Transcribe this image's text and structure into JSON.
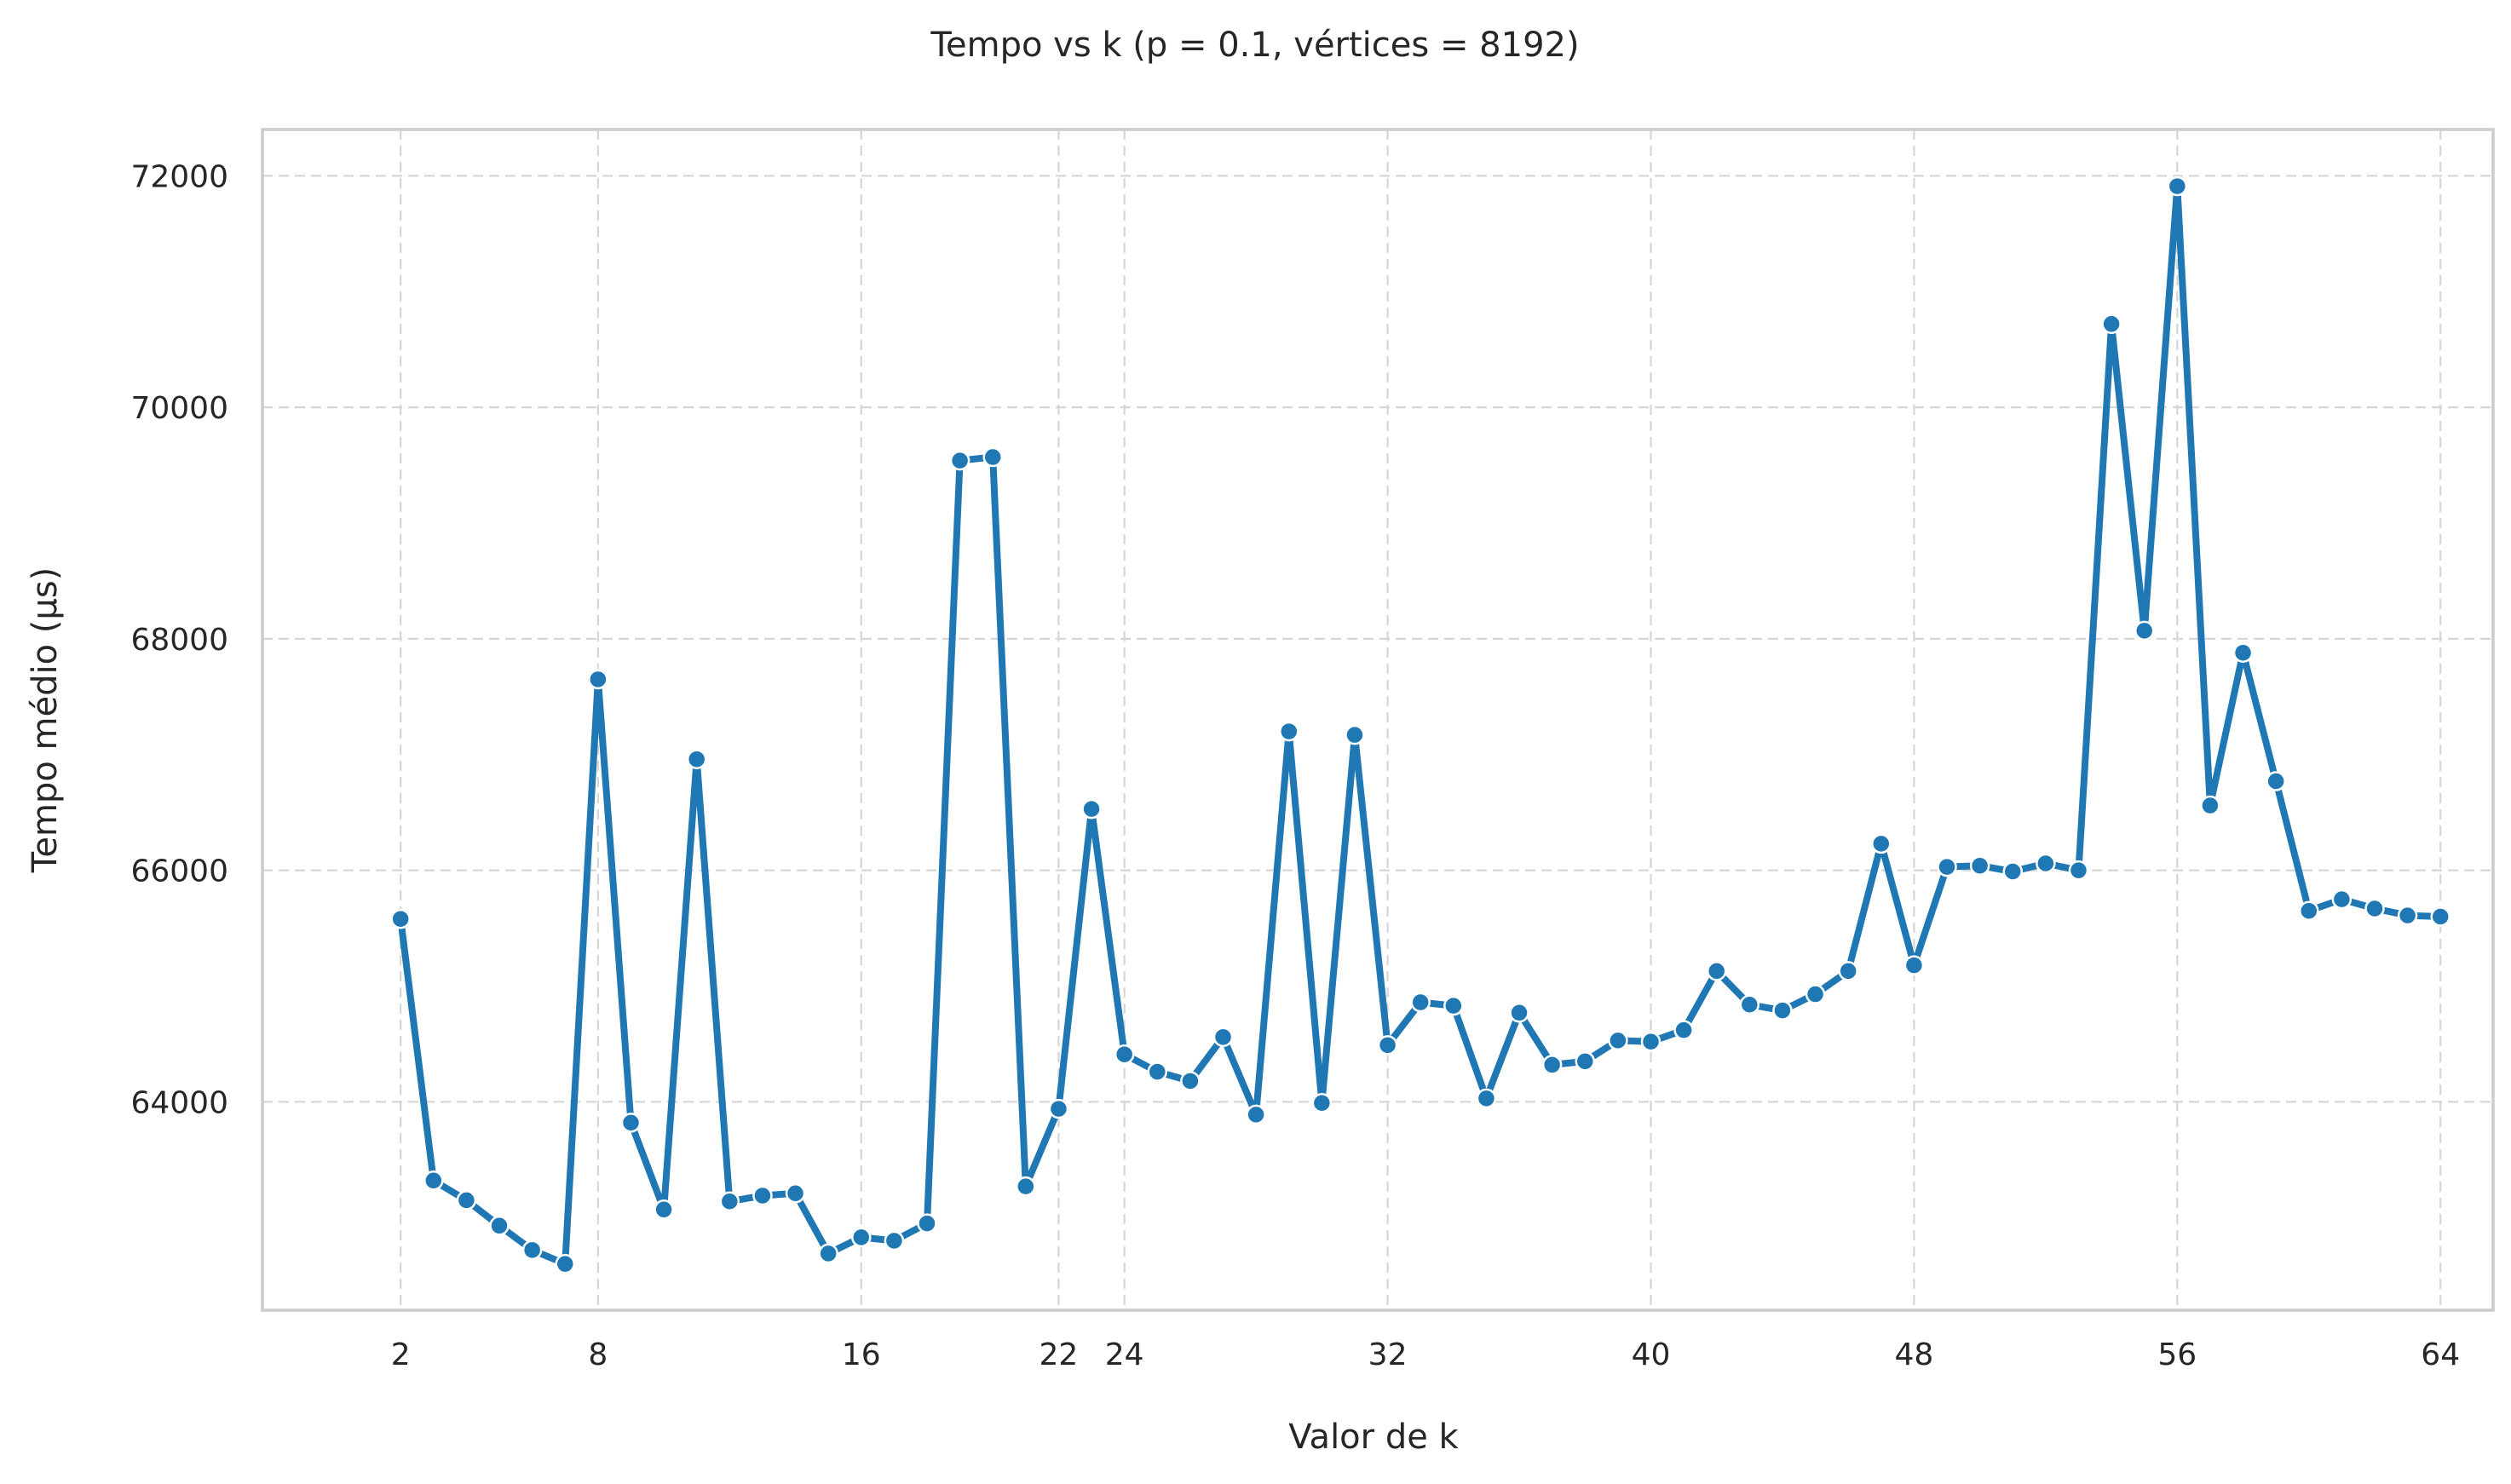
{
  "chart_data": {
    "type": "line",
    "title": "Tempo vs k (p = 0.1, vértices = 8192)",
    "xlabel": "Valor de k",
    "ylabel": "Tempo médio (µs)",
    "xlim": [
      -2.2,
      65.6
    ],
    "ylim": [
      62200,
      72400
    ],
    "grid": true,
    "line_color": "#1f77b4",
    "x_ticks": [
      2,
      8,
      16,
      22,
      24,
      32,
      40,
      48,
      56,
      64
    ],
    "y_ticks": [
      64000,
      66000,
      68000,
      70000,
      72000
    ],
    "series": [
      {
        "x": [
          2,
          3,
          4,
          5,
          6,
          7,
          8,
          9,
          10,
          11,
          12,
          13,
          14,
          15,
          16,
          17,
          18,
          19,
          20,
          21,
          22,
          23,
          24,
          25,
          26,
          27,
          28,
          29,
          30,
          31,
          32,
          33,
          34,
          35,
          36,
          37,
          38,
          39,
          40,
          41,
          42,
          43,
          44,
          45,
          46,
          47,
          48,
          49,
          50,
          51,
          52,
          53,
          54,
          55,
          56,
          57,
          58,
          59,
          60,
          61,
          62,
          63,
          64
        ],
        "y": [
          65580,
          63320,
          63150,
          62930,
          62720,
          62600,
          67650,
          63820,
          63070,
          66960,
          63140,
          63190,
          63210,
          62690,
          62830,
          62800,
          62950,
          69540,
          69570,
          63270,
          63940,
          66530,
          64410,
          64260,
          64180,
          64560,
          63890,
          67200,
          63990,
          67170,
          64490,
          64860,
          64830,
          64030,
          64770,
          64320,
          64350,
          64530,
          64520,
          64620,
          65130,
          64840,
          64790,
          64930,
          65130,
          66230,
          65180,
          66030,
          66040,
          65990,
          66060,
          66000,
          70720,
          68070,
          71910,
          66560,
          67880,
          66770,
          65650,
          65750,
          65670,
          65610,
          65600
        ]
      }
    ]
  }
}
